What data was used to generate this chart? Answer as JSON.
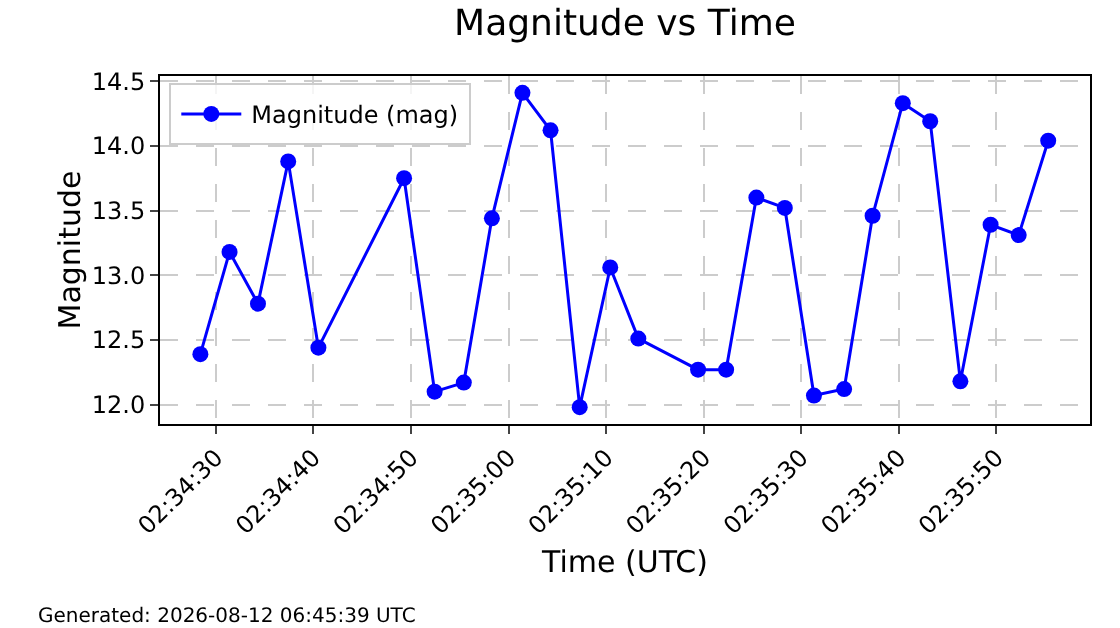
{
  "chart_data": {
    "type": "line",
    "title": "Magnitude vs Time",
    "xlabel": "Time (UTC)",
    "ylabel": "Magnitude",
    "annotations": [
      "Generated: 2026-08-12 06:45:39 UTC"
    ],
    "x": [
      2.57456,
      2.57539,
      2.5762,
      2.57706,
      2.57792,
      2.58036,
      2.58123,
      2.58206,
      2.58286,
      2.58373,
      2.58453,
      2.58536,
      2.58623,
      2.58703,
      2.58873,
      2.58953,
      2.59039,
      2.5912,
      2.59203,
      2.59289,
      2.5937,
      2.59456,
      2.59534,
      2.5962,
      2.59706,
      2.59786,
      2.5987
    ],
    "series": [
      {
        "name": "Magnitude (mag)",
        "color": "#0000ff",
        "values": [
          12.39,
          13.18,
          12.78,
          13.88,
          12.44,
          13.75,
          12.1,
          12.17,
          13.44,
          14.41,
          14.12,
          11.98,
          13.06,
          12.51,
          12.27,
          12.27,
          13.6,
          13.52,
          12.07,
          12.12,
          13.46,
          14.33,
          14.19,
          12.18,
          13.39,
          13.31,
          14.04
        ]
      }
    ],
    "xlim": [
      2.57341,
      2.59989
    ],
    "xticks": [
      {
        "value": 2.575,
        "label": "02:34:30"
      },
      {
        "value": 2.577778,
        "label": "02:34:40"
      },
      {
        "value": 2.580556,
        "label": "02:34:50"
      },
      {
        "value": 2.583333,
        "label": "02:35:00"
      },
      {
        "value": 2.586111,
        "label": "02:35:10"
      },
      {
        "value": 2.588889,
        "label": "02:35:20"
      },
      {
        "value": 2.591667,
        "label": "02:35:30"
      },
      {
        "value": 2.594444,
        "label": "02:35:40"
      },
      {
        "value": 2.597222,
        "label": "02:35:50"
      }
    ],
    "ylim": [
      11.85,
      14.54
    ],
    "yticks": [
      {
        "value": 12,
        "label": "12.0"
      },
      12.5,
      {
        "value": 13,
        "label": "13.0"
      },
      13.5,
      {
        "value": 14,
        "label": "14.0"
      },
      14.5
    ],
    "grid": true,
    "legend": "top left",
    "marker": "circle",
    "line_style": "solid"
  }
}
